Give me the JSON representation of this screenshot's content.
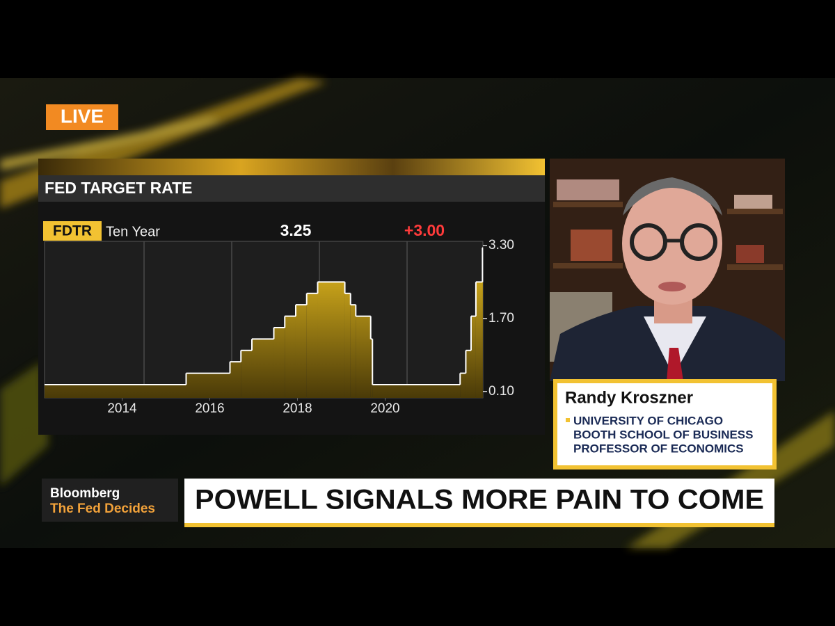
{
  "live_badge": "LIVE",
  "chart_data": {
    "type": "line",
    "step": true,
    "title": "FED TARGET RATE",
    "ticker": "FDTR",
    "period": "Ten Year",
    "last_value_label": "3.25",
    "change_label": "+3.00",
    "x": [
      2012.73,
      2015.96,
      2016.96,
      2017.21,
      2017.46,
      2017.96,
      2018.21,
      2018.46,
      2018.71,
      2018.96,
      2019.58,
      2019.71,
      2019.83,
      2020.17,
      2020.21,
      2022.21,
      2022.34,
      2022.46,
      2022.57,
      2022.72
    ],
    "values": [
      0.25,
      0.5,
      0.75,
      1.0,
      1.25,
      1.5,
      1.75,
      2.0,
      2.25,
      2.5,
      2.25,
      2.0,
      1.75,
      1.25,
      0.25,
      0.5,
      1.0,
      1.75,
      2.5,
      3.25
    ],
    "color": "#ffffff",
    "fill_color": "#e0b21c",
    "xlim": [
      2012.73,
      2022.73
    ],
    "xticks": [
      {
        "value": 2014.5,
        "label": "2014"
      },
      {
        "value": 2016.5,
        "label": "2016"
      },
      {
        "value": 2018.5,
        "label": "2018"
      },
      {
        "value": 2020.5,
        "label": "2020"
      }
    ],
    "xgrid": [
      2015,
      2017,
      2019,
      2021
    ],
    "ylim": [
      -0.04,
      3.39
    ],
    "yticks": [
      {
        "value": 0.1,
        "label": "0.10"
      },
      {
        "value": 1.7,
        "label": "1.70"
      },
      {
        "value": 3.3,
        "label": "3.30"
      }
    ],
    "grid": true
  },
  "guest": {
    "name": "Randy Kroszner",
    "lines": [
      "UNIVERSITY OF CHICAGO",
      "BOOTH SCHOOL OF BUSINESS",
      "PROFESSOR OF ECONOMICS"
    ]
  },
  "show": {
    "brand": "Bloomberg",
    "program": "The Fed Decides"
  },
  "headline": "POWELL SIGNALS MORE PAIN TO COME"
}
